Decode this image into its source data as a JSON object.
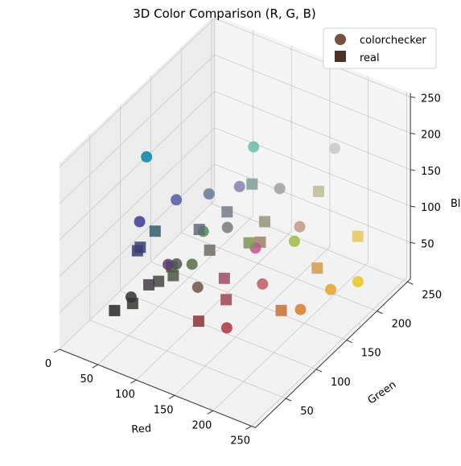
{
  "chart_data": {
    "type": "scatter",
    "title": "3D Color Comparison (R, G, B)",
    "xlabel": "Red",
    "ylabel": "Green",
    "zlabel": "Bl",
    "xlim": [
      0,
      255
    ],
    "ylim": [
      0,
      255
    ],
    "zlim": [
      0,
      255
    ],
    "xticks": [
      "0",
      "50",
      "100",
      "150",
      "200",
      "250"
    ],
    "yticks": [
      "50",
      "100",
      "150",
      "200",
      "250"
    ],
    "zticks": [
      "50",
      "100",
      "150",
      "200",
      "250"
    ],
    "grid": true,
    "legend_position": "top-right",
    "series": [
      {
        "name": "colorchecker",
        "marker": "circle",
        "legend_color": "#735244",
        "points": [
          {
            "r": 115,
            "g": 82,
            "b": 68,
            "color": "#735244"
          },
          {
            "r": 194,
            "g": 150,
            "b": 130,
            "color": "#c29682"
          },
          {
            "r": 98,
            "g": 122,
            "b": 157,
            "color": "#627a9d"
          },
          {
            "r": 87,
            "g": 108,
            "b": 67,
            "color": "#576c43"
          },
          {
            "r": 133,
            "g": 128,
            "b": 177,
            "color": "#8580b1"
          },
          {
            "r": 103,
            "g": 189,
            "b": 170,
            "color": "#67bdaa"
          },
          {
            "r": 214,
            "g": 126,
            "b": 44,
            "color": "#d67e2c"
          },
          {
            "r": 80,
            "g": 91,
            "b": 166,
            "color": "#505ba6"
          },
          {
            "r": 193,
            "g": 90,
            "b": 99,
            "color": "#c15a63"
          },
          {
            "r": 94,
            "g": 60,
            "b": 108,
            "color": "#5e3c6c"
          },
          {
            "r": 157,
            "g": 188,
            "b": 64,
            "color": "#9dbc40"
          },
          {
            "r": 224,
            "g": 163,
            "b": 46,
            "color": "#e0a32e"
          },
          {
            "r": 56,
            "g": 61,
            "b": 150,
            "color": "#383d96"
          },
          {
            "r": 70,
            "g": 148,
            "b": 73,
            "color": "#469449"
          },
          {
            "r": 175,
            "g": 54,
            "b": 60,
            "color": "#af363c"
          },
          {
            "r": 231,
            "g": 199,
            "b": 31,
            "color": "#e7c71f"
          },
          {
            "r": 187,
            "g": 86,
            "b": 149,
            "color": "#bb5695"
          },
          {
            "r": 8,
            "g": 133,
            "b": 161,
            "color": "#0885a1"
          },
          {
            "r": 243,
            "g": 243,
            "b": 242,
            "color": "#f3f3f2"
          },
          {
            "r": 200,
            "g": 200,
            "b": 200,
            "color": "#c8c8c8"
          },
          {
            "r": 160,
            "g": 160,
            "b": 160,
            "color": "#a0a0a0"
          },
          {
            "r": 122,
            "g": 122,
            "b": 121,
            "color": "#7a7a79"
          },
          {
            "r": 85,
            "g": 85,
            "b": 85,
            "color": "#555555"
          },
          {
            "r": 52,
            "g": 52,
            "b": 52,
            "color": "#343434"
          }
        ]
      },
      {
        "name": "real",
        "marker": "square",
        "legend_color": "#4a3426",
        "points": [
          {
            "r": 54,
            "g": 52,
            "b": 44,
            "color": "#36342c"
          },
          {
            "r": 160,
            "g": 128,
            "b": 112,
            "color": "#a08070"
          },
          {
            "r": 98,
            "g": 106,
            "b": 121,
            "color": "#626a79"
          },
          {
            "r": 80,
            "g": 86,
            "b": 66,
            "color": "#505642"
          },
          {
            "r": 120,
            "g": 124,
            "b": 140,
            "color": "#787c8c"
          },
          {
            "r": 124,
            "g": 160,
            "b": 151,
            "color": "#7ca097"
          },
          {
            "r": 200,
            "g": 112,
            "b": 48,
            "color": "#c87030"
          },
          {
            "r": 56,
            "g": 62,
            "b": 114,
            "color": "#383e72"
          },
          {
            "r": 160,
            "g": 72,
            "b": 78,
            "color": "#a0484e"
          },
          {
            "r": 72,
            "g": 56,
            "b": 74,
            "color": "#48384a"
          },
          {
            "r": 128,
            "g": 150,
            "b": 80,
            "color": "#809650"
          },
          {
            "r": 212,
            "g": 156,
            "b": 76,
            "color": "#d49c4c"
          },
          {
            "r": 54,
            "g": 60,
            "b": 110,
            "color": "#363c6e"
          },
          {
            "r": 70,
            "g": 96,
            "b": 66,
            "color": "#466042"
          },
          {
            "r": 140,
            "g": 52,
            "b": 56,
            "color": "#8c3438"
          },
          {
            "r": 230,
            "g": 200,
            "b": 92,
            "color": "#e6c85c"
          },
          {
            "r": 156,
            "g": 74,
            "b": 104,
            "color": "#9c4a68"
          },
          {
            "r": 50,
            "g": 94,
            "b": 108,
            "color": "#325e6c"
          },
          {
            "r": 248,
            "g": 246,
            "b": 244,
            "color": "#f8f6f4"
          },
          {
            "r": 190,
            "g": 186,
            "b": 148,
            "color": "#beba94"
          },
          {
            "r": 150,
            "g": 148,
            "b": 120,
            "color": "#969478"
          },
          {
            "r": 110,
            "g": 108,
            "b": 96,
            "color": "#6e6c60"
          },
          {
            "r": 72,
            "g": 72,
            "b": 66,
            "color": "#484842"
          },
          {
            "r": 40,
            "g": 40,
            "b": 38,
            "color": "#282826"
          }
        ]
      }
    ]
  }
}
